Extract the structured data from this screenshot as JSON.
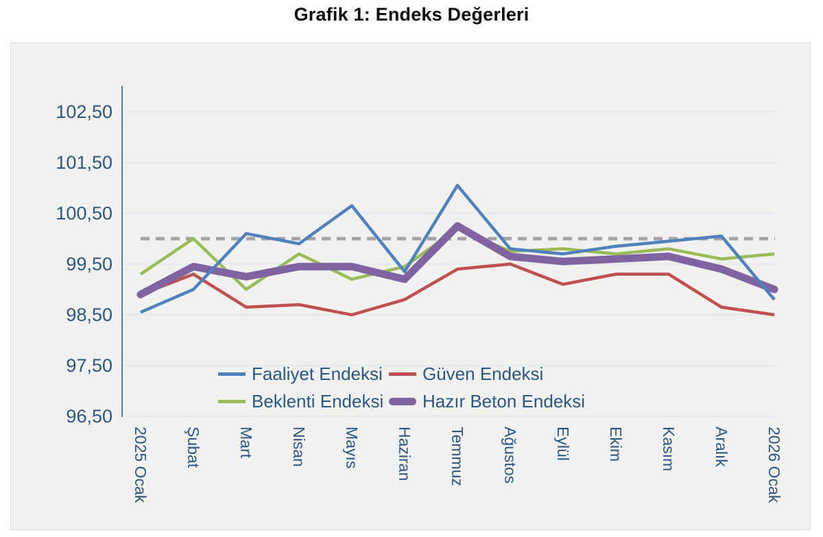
{
  "title": "Grafik 1: Endeks Değerleri",
  "chart_data": {
    "type": "line",
    "title": "Grafik 1: Endeks Değerleri",
    "xlabel": "",
    "ylabel": "",
    "categories": [
      "2025 Ocak",
      "Şubat",
      "Mart",
      "Nisan",
      "Mayıs",
      "Haziran",
      "Temmuz",
      "Ağustos",
      "Eylül",
      "Ekim",
      "Kasım",
      "Aralık",
      "2026 Ocak"
    ],
    "series": [
      {
        "name": "Faaliyet Endeksi",
        "color": "#4F81BD",
        "stroke_width": 4.5,
        "linecap": "butt",
        "values": [
          98.55,
          99.0,
          100.1,
          99.9,
          100.65,
          99.35,
          101.05,
          99.8,
          99.7,
          99.85,
          99.95,
          100.05,
          98.8
        ]
      },
      {
        "name": "Güven Endeksi",
        "color": "#C0504D",
        "stroke_width": 4.5,
        "linecap": "butt",
        "values": [
          98.9,
          99.3,
          98.65,
          98.7,
          98.5,
          98.8,
          99.4,
          99.5,
          99.1,
          99.3,
          99.3,
          98.65,
          98.5
        ]
      },
      {
        "name": "Beklenti Endeksi",
        "color": "#9BBB59",
        "stroke_width": 4.5,
        "linecap": "butt",
        "values": [
          99.3,
          100.0,
          99.0,
          99.7,
          99.2,
          99.45,
          100.2,
          99.75,
          99.8,
          99.7,
          99.8,
          99.6,
          99.7
        ]
      },
      {
        "name": "Hazır Beton Endeksi",
        "color": "#8064A2",
        "stroke_width": 11,
        "linecap": "round",
        "values": [
          98.9,
          99.45,
          99.25,
          99.45,
          99.45,
          99.2,
          100.25,
          99.65,
          99.55,
          99.6,
          99.65,
          99.4,
          99.0
        ]
      }
    ],
    "reference_line": {
      "value": 100.0,
      "color": "#A3A3A3",
      "stroke_width": 5,
      "dash": "13 9"
    },
    "y_ticks": [
      102.5,
      101.5,
      100.5,
      99.5,
      98.5,
      97.5,
      96.5
    ],
    "y_tick_labels": [
      "102,50",
      "101,50",
      "100,50",
      "99,50",
      "98,50",
      "97,50",
      "96,50"
    ],
    "ylim": [
      96.5,
      103.0
    ],
    "grid": true,
    "grid_color": "#dde3ec",
    "axis_color": "#4a7cb5",
    "tick_label_color": "#2a5783",
    "plot_background": "#f1f1ef",
    "legend_position": "bottom-inside"
  }
}
